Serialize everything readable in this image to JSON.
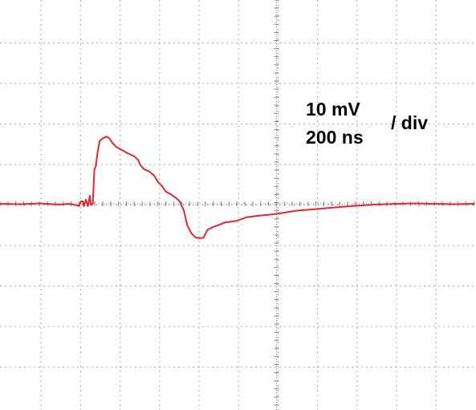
{
  "labels": {
    "volts_per_div": "10 mV",
    "time_per_div": "200 ns",
    "per_div": "/ div"
  },
  "colors": {
    "trace": "#e0282f",
    "grid": "#a8a8a8",
    "center_axis": "#808080",
    "background": "#ffffff"
  },
  "chart_data": {
    "type": "line",
    "title": "",
    "xlabel": "",
    "ylabel": "",
    "x_unit": "ns",
    "y_unit": "mV",
    "grid": true,
    "x_divisions": 12,
    "y_divisions": 10,
    "xlim": [
      -1000,
      1400
    ],
    "ylim": [
      -50,
      50
    ],
    "series": [
      {
        "name": "",
        "points": [
          [
            -1000,
            0.0
          ],
          [
            -900,
            -0.1
          ],
          [
            -800,
            0.1
          ],
          [
            -700,
            -0.2
          ],
          [
            -650,
            0.0
          ],
          [
            -610,
            -0.4
          ],
          [
            -600,
            -0.6
          ],
          [
            -590,
            0.6
          ],
          [
            -580,
            0.6
          ],
          [
            -575,
            -0.6
          ],
          [
            -565,
            1.0
          ],
          [
            -555,
            -0.6
          ],
          [
            -545,
            2.0
          ],
          [
            -540,
            -0.3
          ],
          [
            -530,
            0.0
          ],
          [
            -522,
            8.5
          ],
          [
            -515,
            9.2
          ],
          [
            -505,
            13.0
          ],
          [
            -495,
            15.5
          ],
          [
            -480,
            16.1
          ],
          [
            -460,
            16.6
          ],
          [
            -445,
            16.1
          ],
          [
            -430,
            15.0
          ],
          [
            -410,
            14.0
          ],
          [
            -380,
            13.2
          ],
          [
            -350,
            12.4
          ],
          [
            -320,
            11.7
          ],
          [
            -300,
            10.8
          ],
          [
            -290,
            9.6
          ],
          [
            -270,
            8.5
          ],
          [
            -245,
            8.0
          ],
          [
            -220,
            7.0
          ],
          [
            -200,
            5.4
          ],
          [
            -180,
            4.4
          ],
          [
            -160,
            3.0
          ],
          [
            -130,
            2.2
          ],
          [
            -110,
            1.5
          ],
          [
            -90,
            0.6
          ],
          [
            -80,
            -0.5
          ],
          [
            -70,
            -1.5
          ],
          [
            -60,
            -3.5
          ],
          [
            -50,
            -5.5
          ],
          [
            -30,
            -7.3
          ],
          [
            -10,
            -8.3
          ],
          [
            10,
            -8.5
          ],
          [
            30,
            -8.4
          ],
          [
            50,
            -6.5
          ],
          [
            80,
            -5.7
          ],
          [
            110,
            -5.2
          ],
          [
            140,
            -4.6
          ],
          [
            200,
            -4.2
          ],
          [
            250,
            -3.3
          ],
          [
            300,
            -3.0
          ],
          [
            400,
            -2.5
          ],
          [
            500,
            -1.7
          ],
          [
            600,
            -1.3
          ],
          [
            700,
            -0.9
          ],
          [
            800,
            -0.5
          ],
          [
            900,
            -0.2
          ],
          [
            1000,
            0.0
          ],
          [
            1100,
            0.1
          ],
          [
            1200,
            0.0
          ],
          [
            1300,
            -0.1
          ],
          [
            1400,
            0.0
          ]
        ]
      }
    ]
  }
}
